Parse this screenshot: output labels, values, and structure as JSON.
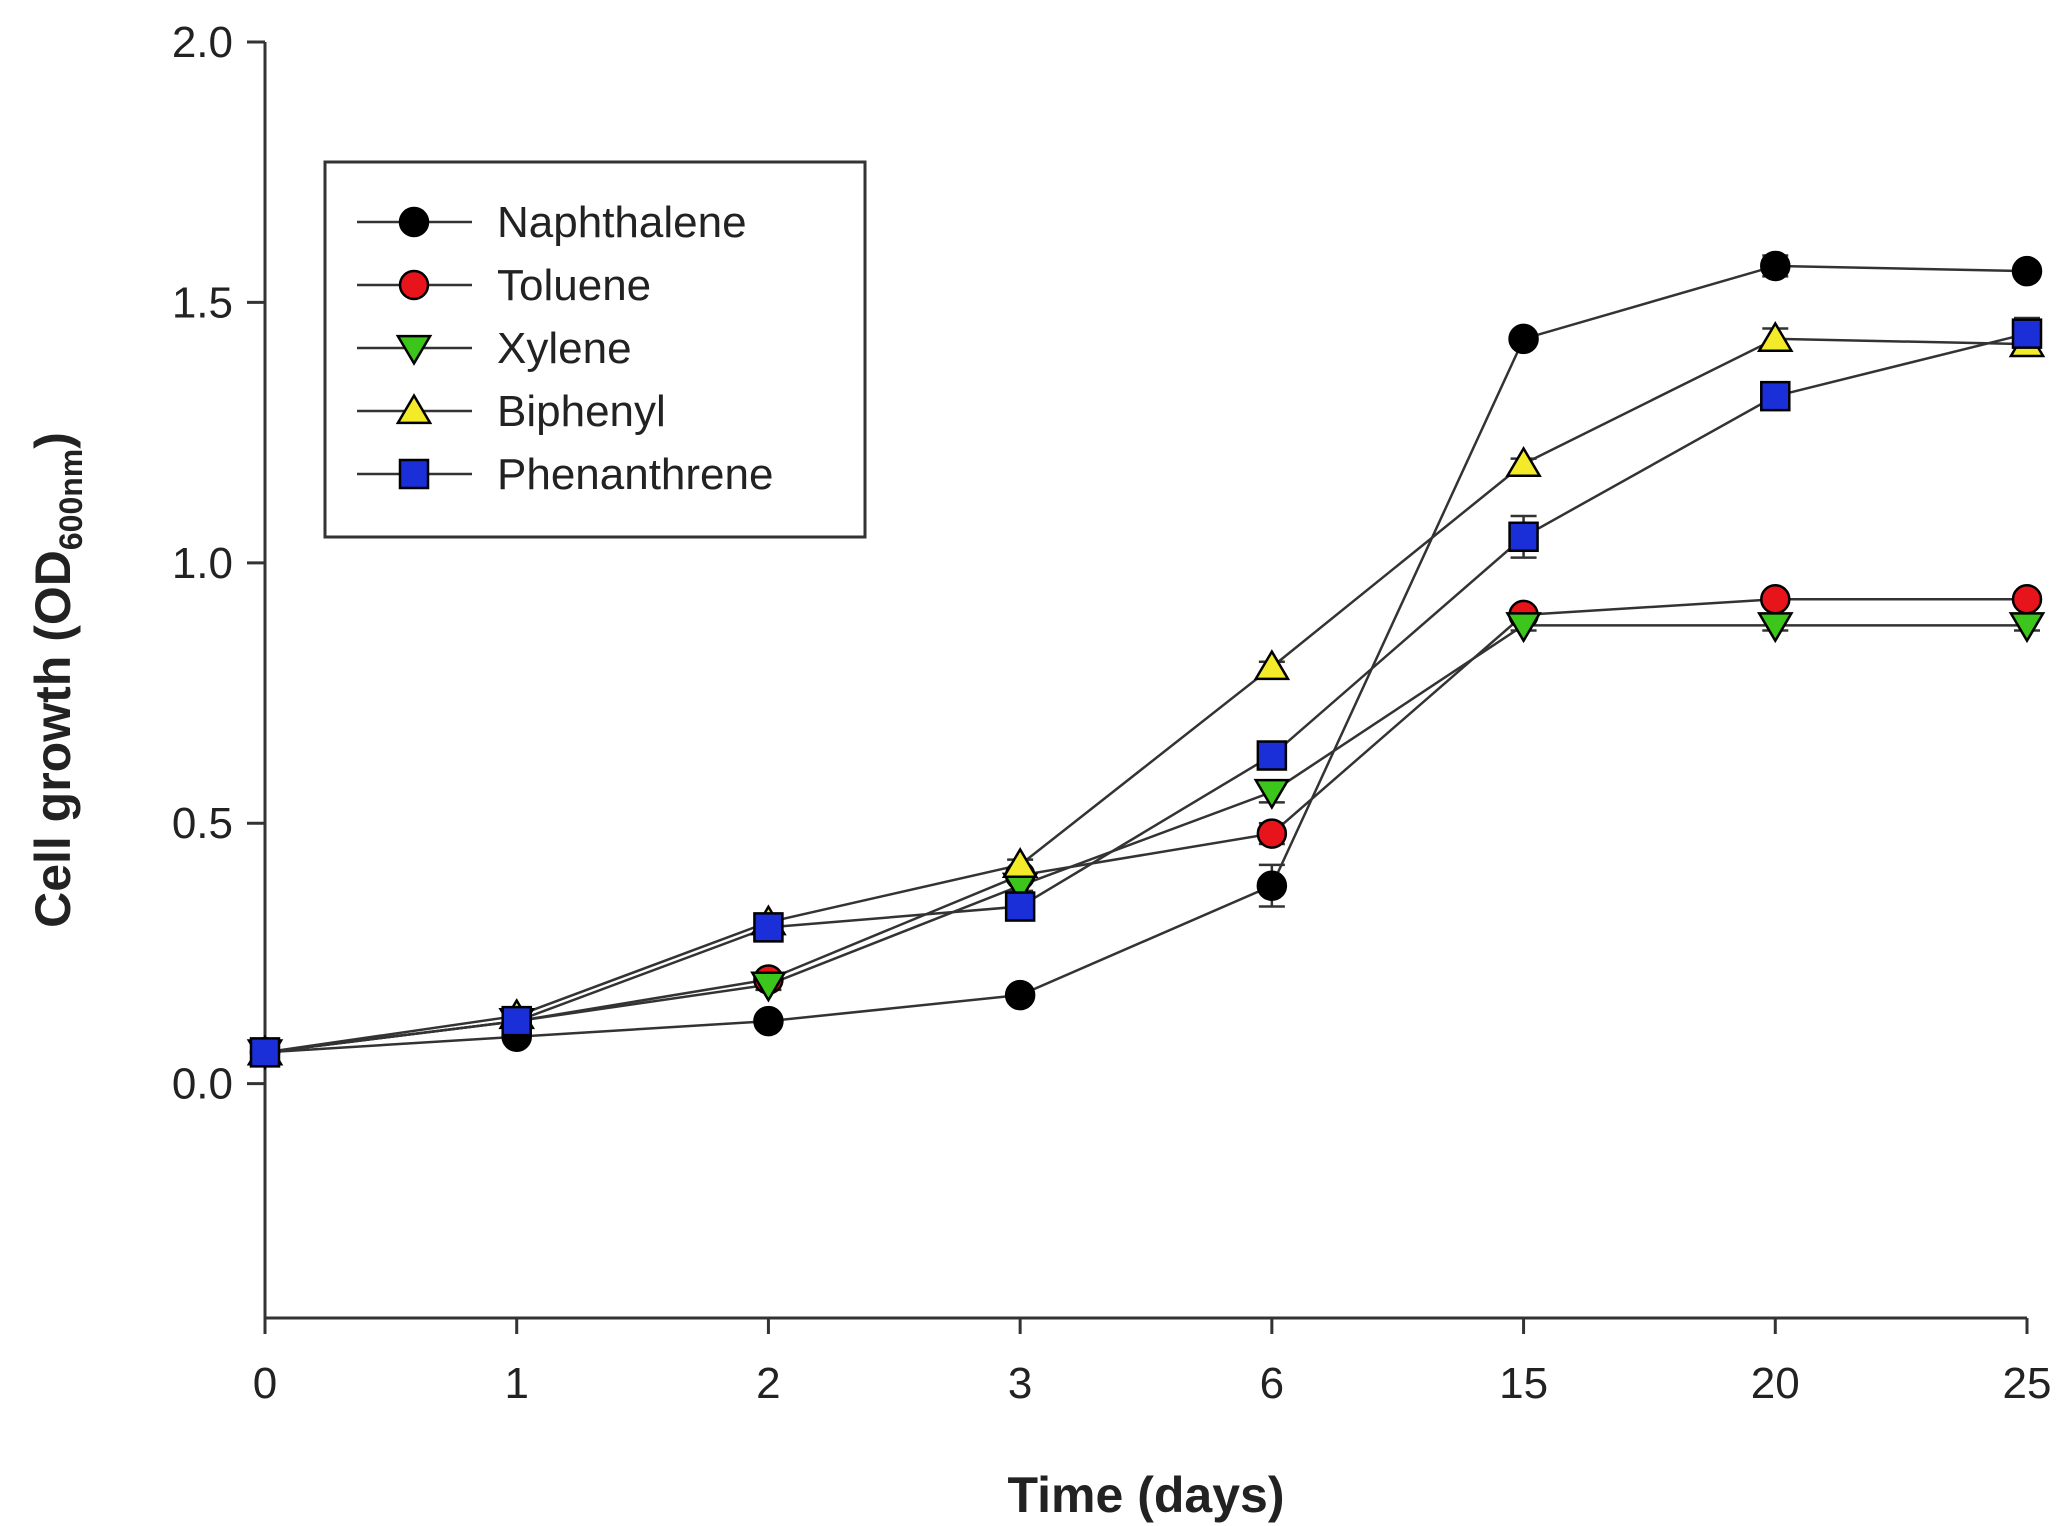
{
  "chart_data": {
    "type": "line",
    "title": "",
    "xlabel": "Time (days)",
    "ylabel": "Cell growth (OD",
    "ylabel_sub": "600nm",
    "ylabel_close": ")",
    "x_categories": [
      "0",
      "1",
      "2",
      "3",
      "6",
      "15",
      "20",
      "25"
    ],
    "ylim": [
      -0.45,
      2.0
    ],
    "yticks": [
      0.0,
      0.5,
      1.0,
      1.5,
      2.0
    ],
    "ytick_labels": [
      "0.0",
      "0.5",
      "1.0",
      "1.5",
      "2.0"
    ],
    "grid": false,
    "legend_position": "upper-left",
    "series": [
      {
        "name": "Naphthalene",
        "marker": "circle",
        "color": "#000000",
        "values": [
          0.06,
          0.09,
          0.12,
          0.17,
          0.38,
          1.43,
          1.57,
          1.56
        ],
        "errors": [
          0.01,
          0.01,
          0.01,
          0.01,
          0.04,
          0.01,
          0.02,
          0.01
        ]
      },
      {
        "name": "Toluene",
        "marker": "circle",
        "color": "#e8141b",
        "values": [
          0.06,
          0.12,
          0.2,
          0.4,
          0.48,
          0.9,
          0.93,
          0.93
        ],
        "errors": [
          0.01,
          0.01,
          0.01,
          0.01,
          0.02,
          0.01,
          0.01,
          0.01
        ]
      },
      {
        "name": "Xylene",
        "marker": "triangle-down",
        "color": "#3cc51b",
        "values": [
          0.06,
          0.12,
          0.19,
          0.38,
          0.56,
          0.88,
          0.88,
          0.88
        ],
        "errors": [
          0.01,
          0.01,
          0.01,
          0.01,
          0.02,
          0.01,
          0.01,
          0.01
        ]
      },
      {
        "name": "Biphenyl",
        "marker": "triangle-up",
        "color": "#f3ea2a",
        "values": [
          0.06,
          0.13,
          0.31,
          0.42,
          0.8,
          1.19,
          1.43,
          1.42
        ],
        "errors": [
          0.01,
          0.01,
          0.01,
          0.01,
          0.01,
          0.01,
          0.02,
          0.01
        ]
      },
      {
        "name": "Phenanthrene",
        "marker": "square",
        "color": "#1a2fd8",
        "values": [
          0.06,
          0.12,
          0.3,
          0.34,
          0.63,
          1.05,
          1.32,
          1.44
        ],
        "errors": [
          0.01,
          0.01,
          0.01,
          0.01,
          0.02,
          0.04,
          0.01,
          0.03
        ]
      }
    ]
  }
}
